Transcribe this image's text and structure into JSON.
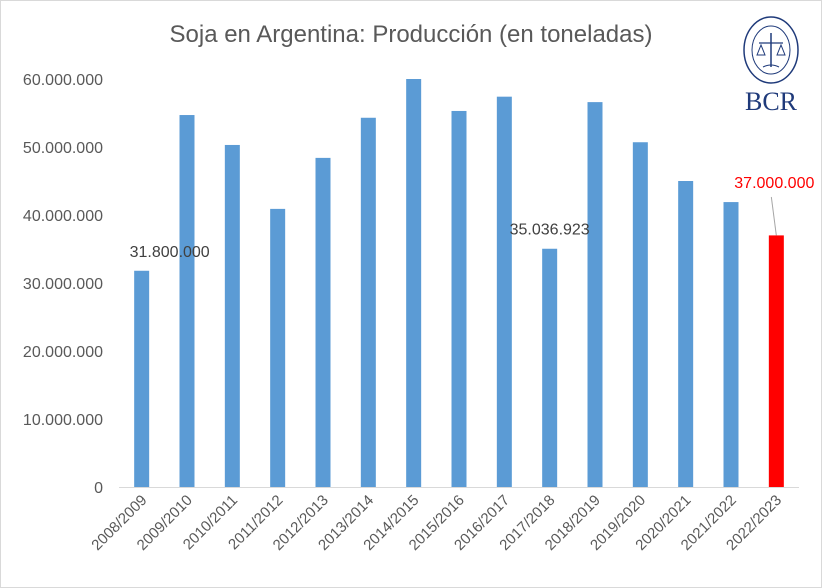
{
  "chart_data": {
    "type": "bar",
    "title": "Soja en Argentina: Producción (en toneladas)",
    "categories": [
      "2008/2009",
      "2009/2010",
      "2010/2011",
      "2011/2012",
      "2012/2013",
      "2013/2014",
      "2014/2015",
      "2015/2016",
      "2016/2017",
      "2017/2018",
      "2018/2019",
      "2019/2020",
      "2020/2021",
      "2021/2022",
      "2022/2023"
    ],
    "values": [
      31800000,
      54700000,
      50300000,
      40900000,
      48400000,
      54300000,
      60000000,
      55300000,
      57400000,
      35036923,
      56600000,
      50700000,
      45000000,
      41900000,
      37000000
    ],
    "colors": [
      "#5b9bd5",
      "#5b9bd5",
      "#5b9bd5",
      "#5b9bd5",
      "#5b9bd5",
      "#5b9bd5",
      "#5b9bd5",
      "#5b9bd5",
      "#5b9bd5",
      "#5b9bd5",
      "#5b9bd5",
      "#5b9bd5",
      "#5b9bd5",
      "#5b9bd5",
      "#ff0000"
    ],
    "data_labels": [
      {
        "index": 0,
        "text": "31.800.000",
        "color": "#404040"
      },
      {
        "index": 9,
        "text": "35.036.923",
        "color": "#404040"
      },
      {
        "index": 14,
        "text": "37.000.000",
        "color": "#ff0000"
      }
    ],
    "ylim": [
      0,
      60000000
    ],
    "yticks": [
      0,
      10000000,
      20000000,
      30000000,
      40000000,
      50000000,
      60000000
    ],
    "ytick_labels": [
      "0",
      "10.000.000",
      "20.000.000",
      "30.000.000",
      "40.000.000",
      "50.000.000",
      "60.000.000"
    ],
    "grid": false,
    "xlabel": "",
    "ylabel": ""
  },
  "logo": {
    "text": "BCR",
    "seal_text": "BOLSA DE COMERCIO DE ROSARIO"
  }
}
